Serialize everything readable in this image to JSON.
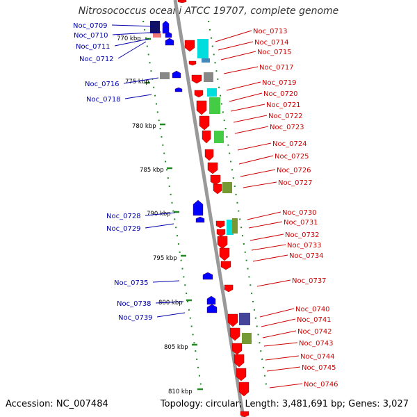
{
  "title": "Nitrosococcus oceani ATCC 19707, complete genome",
  "footer": {
    "accession": "Accession: NC_007484",
    "topology": "Topology: circular; Length: 3,481,691 bp; Genes: 3,027"
  },
  "colors": {
    "forward_gene": "#ff0000",
    "reverse_gene": "#0000ff",
    "backbone": "#999999",
    "tick": "#228822",
    "label_forward": "#cc0000",
    "label_reverse": "#0000aa",
    "feature_cyan": "#00dddd",
    "feature_green": "#44cc44",
    "feature_olive": "#779933",
    "feature_gray": "#888888",
    "feature_navy": "#111166",
    "feature_purple": "#444499"
  },
  "scale_labels": [
    "770 kbp",
    "775 kbp",
    "780 kbp",
    "785 kbp",
    "790 kbp",
    "795 kbp",
    "800 kbp",
    "805 kbp",
    "810 kbp"
  ],
  "reverse_genes": [
    "Noc_0709",
    "Noc_0710",
    "Noc_0711",
    "Noc_0712",
    "Noc_0716",
    "Noc_0718",
    "Noc_0728",
    "Noc_0729",
    "Noc_0735",
    "Noc_0738",
    "Noc_0739"
  ],
  "forward_genes": [
    "Noc_0713",
    "Noc_0714",
    "Noc_0715",
    "Noc_0717",
    "Noc_0719",
    "Noc_0720",
    "Noc_0721",
    "Noc_0722",
    "Noc_0723",
    "Noc_0724",
    "Noc_0725",
    "Noc_0726",
    "Noc_0727",
    "Noc_0730",
    "Noc_0731",
    "Noc_0732",
    "Noc_0733",
    "Noc_0734",
    "Noc_0737",
    "Noc_0740",
    "Noc_0741",
    "Noc_0742",
    "Noc_0743",
    "Noc_0744",
    "Noc_0745",
    "Noc_0746"
  ]
}
